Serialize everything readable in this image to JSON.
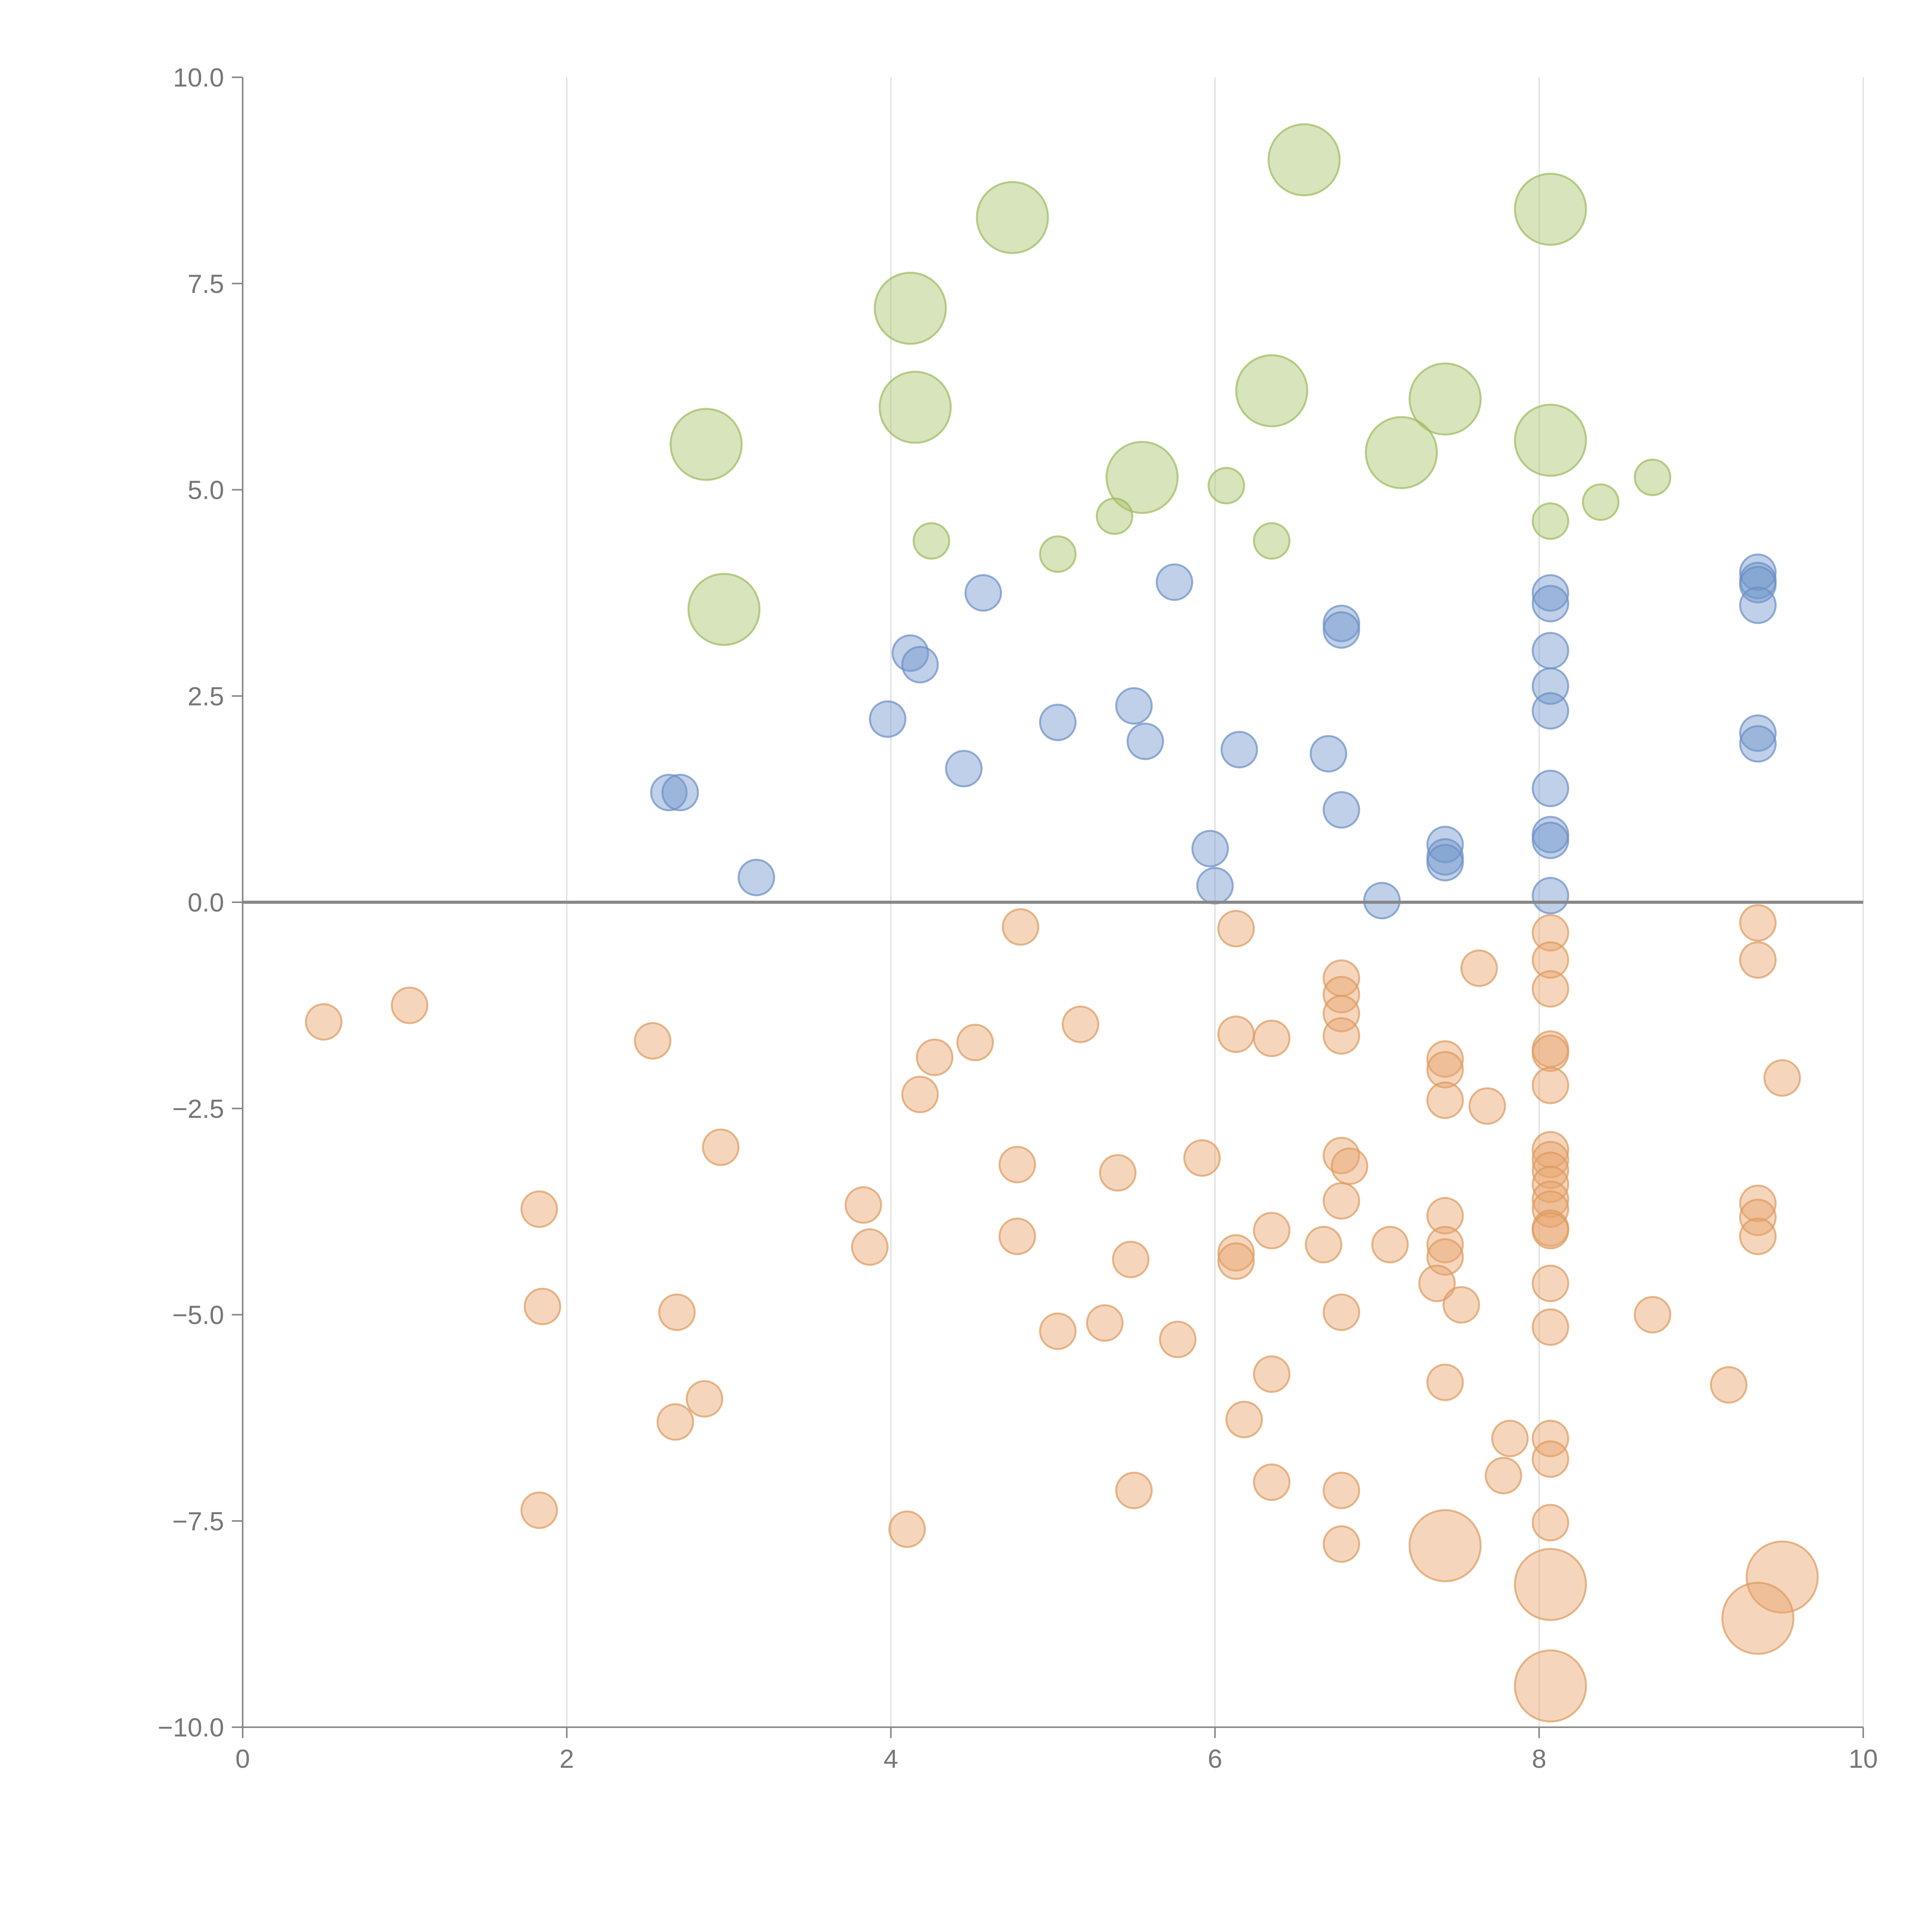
{
  "chart_data": {
    "type": "scatter",
    "title": "",
    "xlabel": "",
    "ylabel": "",
    "xlim": [
      0,
      10
    ],
    "ylim": [
      -10,
      10
    ],
    "x_ticks": [
      "0",
      "2",
      "4",
      "6",
      "8",
      "10"
    ],
    "x_tick_values": [
      0,
      2,
      4,
      6,
      8,
      10
    ],
    "y_ticks": [
      "10.0",
      "7.5",
      "5.0",
      "2.5",
      "0.0",
      "−2.5",
      "−5.0",
      "−7.5",
      "−10.0"
    ],
    "y_tick_values": [
      10,
      7.5,
      5,
      2.5,
      0,
      -2.5,
      -5,
      -7.5,
      -10
    ],
    "grid": "vertical",
    "zero_line": true,
    "series": [
      {
        "color": "#a8c46a",
        "stroke": "#9bba5c",
        "points": [
          [
            6.55,
            9.0,
            2.0
          ],
          [
            4.75,
            8.3,
            2.0
          ],
          [
            8.07,
            8.4,
            2.0
          ],
          [
            4.12,
            7.2,
            2.0
          ],
          [
            4.15,
            6.0,
            2.0
          ],
          [
            6.35,
            6.2,
            2.0
          ],
          [
            7.42,
            6.1,
            2.0
          ],
          [
            2.86,
            5.55,
            2.0
          ],
          [
            5.55,
            5.15,
            2.0
          ],
          [
            7.15,
            5.45,
            2.0
          ],
          [
            8.07,
            5.6,
            2.0
          ],
          [
            2.97,
            3.55,
            2.0
          ],
          [
            6.07,
            5.05,
            1.0
          ],
          [
            5.38,
            4.68,
            1.0
          ],
          [
            4.25,
            4.38,
            1.0
          ],
          [
            5.03,
            4.22,
            1.0
          ],
          [
            6.35,
            4.38,
            1.0
          ],
          [
            8.07,
            4.62,
            1.0
          ],
          [
            8.38,
            4.85,
            1.0
          ],
          [
            8.7,
            5.15,
            1.0
          ]
        ]
      },
      {
        "color": "#7096cc",
        "stroke": "#6a8fc4",
        "points": [
          [
            4.57,
            3.75,
            1
          ],
          [
            5.75,
            3.88,
            1
          ],
          [
            4.12,
            3.02,
            1
          ],
          [
            4.18,
            2.88,
            1
          ],
          [
            3.98,
            2.22,
            1
          ],
          [
            5.03,
            2.18,
            1
          ],
          [
            5.5,
            2.38,
            1
          ],
          [
            5.57,
            1.95,
            1
          ],
          [
            4.45,
            1.62,
            1
          ],
          [
            6.15,
            1.85,
            1
          ],
          [
            6.7,
            1.8,
            1
          ],
          [
            2.63,
            1.33,
            1
          ],
          [
            2.7,
            1.33,
            1
          ],
          [
            3.17,
            0.3,
            1
          ],
          [
            5.97,
            0.65,
            1
          ],
          [
            6.0,
            0.2,
            1
          ],
          [
            6.78,
            3.38,
            1
          ],
          [
            6.78,
            3.3,
            1
          ],
          [
            6.78,
            1.12,
            1
          ],
          [
            7.03,
            0.02,
            1
          ],
          [
            7.42,
            0.7,
            1
          ],
          [
            7.42,
            0.55,
            1
          ],
          [
            7.42,
            0.48,
            1
          ],
          [
            8.07,
            3.75,
            1
          ],
          [
            8.07,
            3.62,
            1
          ],
          [
            8.07,
            3.05,
            1
          ],
          [
            8.07,
            2.62,
            1
          ],
          [
            8.07,
            2.32,
            1
          ],
          [
            8.07,
            1.38,
            1
          ],
          [
            8.07,
            0.82,
            1
          ],
          [
            8.07,
            0.75,
            1
          ],
          [
            8.07,
            0.08,
            1
          ],
          [
            9.35,
            4.0,
            1
          ],
          [
            9.35,
            3.9,
            1
          ],
          [
            9.35,
            3.85,
            1
          ],
          [
            9.35,
            3.6,
            1
          ],
          [
            9.35,
            2.05,
            1
          ],
          [
            9.35,
            1.92,
            1
          ]
        ]
      },
      {
        "color": "#e8a46c",
        "stroke": "#dd9a5e",
        "points": [
          [
            0.5,
            -1.45,
            1
          ],
          [
            1.03,
            -1.25,
            1
          ],
          [
            2.53,
            -1.68,
            1
          ],
          [
            2.95,
            -2.97,
            1
          ],
          [
            1.83,
            -3.72,
            1
          ],
          [
            1.85,
            -4.9,
            1
          ],
          [
            2.68,
            -4.97,
            1
          ],
          [
            2.85,
            -6.02,
            1
          ],
          [
            2.67,
            -6.3,
            1
          ],
          [
            1.83,
            -7.37,
            1
          ],
          [
            3.83,
            -3.67,
            1
          ],
          [
            3.87,
            -4.18,
            1
          ],
          [
            4.1,
            -7.6,
            1
          ],
          [
            4.18,
            -2.33,
            1
          ],
          [
            4.27,
            -1.88,
            1
          ],
          [
            4.52,
            -1.7,
            1
          ],
          [
            4.8,
            -0.3,
            1
          ],
          [
            4.78,
            -3.18,
            1
          ],
          [
            4.78,
            -4.05,
            1
          ],
          [
            5.03,
            -5.2,
            1
          ],
          [
            5.17,
            -1.48,
            1
          ],
          [
            5.32,
            -5.1,
            1
          ],
          [
            5.4,
            -3.28,
            1
          ],
          [
            5.48,
            -4.33,
            1
          ],
          [
            5.5,
            -7.13,
            1
          ],
          [
            5.77,
            -5.3,
            1
          ],
          [
            5.92,
            -3.1,
            1
          ],
          [
            6.13,
            -0.32,
            1
          ],
          [
            6.13,
            -1.6,
            1
          ],
          [
            6.35,
            -1.65,
            1
          ],
          [
            6.13,
            -4.25,
            1
          ],
          [
            6.13,
            -4.35,
            1
          ],
          [
            6.35,
            -3.98,
            1
          ],
          [
            6.35,
            -5.72,
            1
          ],
          [
            6.18,
            -6.27,
            1
          ],
          [
            6.35,
            -7.03,
            1
          ],
          [
            6.67,
            -4.15,
            1
          ],
          [
            6.78,
            -0.92,
            1
          ],
          [
            6.78,
            -1.12,
            1
          ],
          [
            6.78,
            -1.35,
            1
          ],
          [
            6.78,
            -1.62,
            1
          ],
          [
            6.78,
            -3.07,
            1
          ],
          [
            6.83,
            -3.2,
            1
          ],
          [
            6.78,
            -3.62,
            1
          ],
          [
            6.78,
            -4.97,
            1
          ],
          [
            6.78,
            -7.13,
            1
          ],
          [
            6.78,
            -7.78,
            1
          ],
          [
            7.08,
            -4.15,
            1
          ],
          [
            7.42,
            -1.9,
            1
          ],
          [
            7.42,
            -2.03,
            1
          ],
          [
            7.42,
            -2.4,
            1
          ],
          [
            7.42,
            -3.8,
            1
          ],
          [
            7.42,
            -4.15,
            1
          ],
          [
            7.42,
            -4.3,
            1
          ],
          [
            7.37,
            -4.62,
            1
          ],
          [
            7.52,
            -4.88,
            1
          ],
          [
            7.42,
            -5.82,
            1
          ],
          [
            7.63,
            -0.8,
            1
          ],
          [
            7.68,
            -2.47,
            1
          ],
          [
            7.82,
            -6.5,
            1
          ],
          [
            7.78,
            -6.95,
            1
          ],
          [
            8.07,
            -0.37,
            1
          ],
          [
            8.07,
            -0.7,
            1
          ],
          [
            8.07,
            -1.05,
            1
          ],
          [
            8.07,
            -1.78,
            1
          ],
          [
            8.07,
            -1.83,
            1
          ],
          [
            8.07,
            -2.22,
            1
          ],
          [
            8.07,
            -3.0,
            1
          ],
          [
            8.07,
            -3.12,
            1
          ],
          [
            8.07,
            -3.25,
            1
          ],
          [
            8.07,
            -3.42,
            1
          ],
          [
            8.07,
            -3.6,
            1
          ],
          [
            8.07,
            -3.72,
            1
          ],
          [
            8.07,
            -3.95,
            1
          ],
          [
            8.07,
            -3.98,
            1
          ],
          [
            8.07,
            -4.62,
            1
          ],
          [
            8.07,
            -5.15,
            1
          ],
          [
            8.07,
            -6.5,
            1
          ],
          [
            8.07,
            -6.75,
            1
          ],
          [
            8.07,
            -7.52,
            1
          ],
          [
            8.7,
            -5.0,
            1
          ],
          [
            9.17,
            -5.85,
            1
          ],
          [
            9.35,
            -0.25,
            1
          ],
          [
            9.35,
            -0.7,
            1
          ],
          [
            9.35,
            -3.65,
            1
          ],
          [
            9.35,
            -3.82,
            1
          ],
          [
            9.35,
            -4.05,
            1
          ],
          [
            9.5,
            -2.13,
            1
          ],
          [
            7.42,
            -7.8,
            2.0
          ],
          [
            8.07,
            -8.27,
            2.0
          ],
          [
            9.5,
            -8.18,
            2.0
          ],
          [
            9.35,
            -8.68,
            2.0
          ],
          [
            8.07,
            -9.5,
            2.0
          ]
        ]
      }
    ]
  }
}
